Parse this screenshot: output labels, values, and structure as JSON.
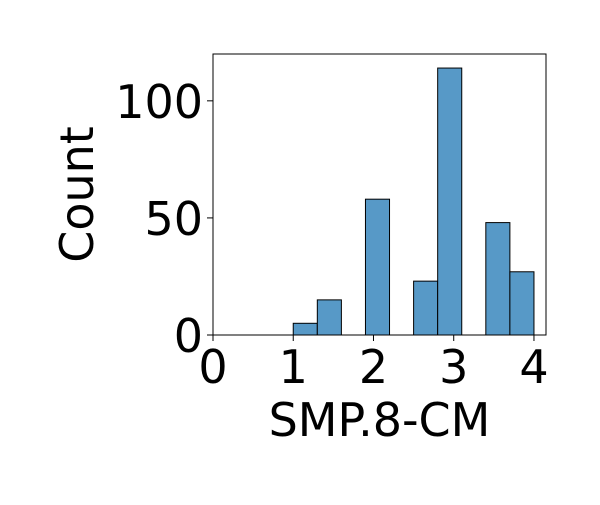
{
  "chart_data": {
    "type": "bar",
    "xlabel": "SMP.8-CM",
    "ylabel": "Count",
    "xlim": [
      0,
      4.15
    ],
    "ylim": [
      0,
      120
    ],
    "xticks": [
      "0",
      "1",
      "2",
      "3",
      "4"
    ],
    "yticks": [
      "0",
      "50",
      "100"
    ],
    "bins": [
      {
        "x0": 1.0,
        "x1": 1.3,
        "value": 5
      },
      {
        "x0": 1.3,
        "x1": 1.6,
        "value": 15
      },
      {
        "x0": 1.9,
        "x1": 2.2,
        "value": 58
      },
      {
        "x0": 2.5,
        "x1": 2.8,
        "value": 23
      },
      {
        "x0": 2.8,
        "x1": 3.1,
        "value": 114
      },
      {
        "x0": 3.4,
        "x1": 3.7,
        "value": 48
      },
      {
        "x0": 3.7,
        "x1": 4.0,
        "value": 27
      }
    ],
    "grid": false,
    "bar_color": "#5799c7",
    "edge_color": "#000000"
  }
}
